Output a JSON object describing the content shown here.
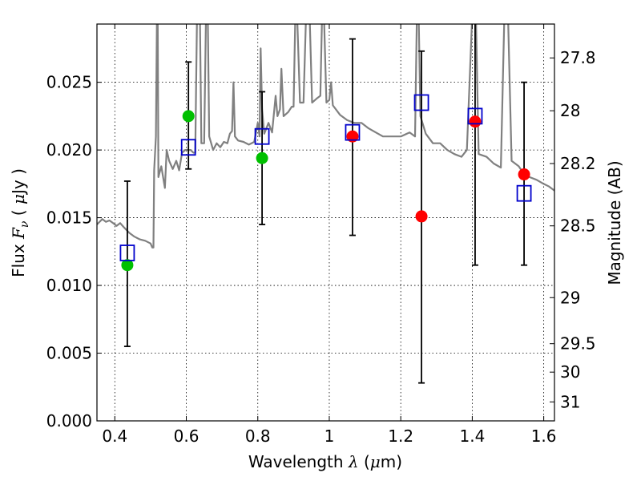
{
  "chart_data": {
    "type": "scatter",
    "xlabel": "Wavelength",
    "xlabel_symbol": "λ",
    "xlabel_unit_open": " (",
    "xlabel_unit_mu": "μ",
    "xlabel_unit_close": "m)",
    "ylabel_left_prefix": "Flux",
    "ylabel_left_symbol": "F",
    "ylabel_left_sub": "ν",
    "ylabel_left_unit_open": "(",
    "ylabel_left_unit_mu": "μ",
    "ylabel_left_unit_close": "Jy )",
    "ylabel_right": "Magnitude (AB)",
    "xlim": [
      0.35,
      1.63
    ],
    "ylim": [
      0.0,
      0.0293
    ],
    "x_ticks": [
      0.4,
      0.6,
      0.8,
      1.0,
      1.2,
      1.4,
      1.6
    ],
    "x_tick_labels": [
      "0.4",
      "0.6",
      "0.8",
      "1",
      "1.2",
      "1.4",
      "1.6"
    ],
    "y_ticks": [
      0.0,
      0.005,
      0.01,
      0.015,
      0.02,
      0.025
    ],
    "y_tick_labels": [
      "0.000",
      "0.005",
      "0.010",
      "0.015",
      "0.020",
      "0.025"
    ],
    "right_ticks": [
      {
        "label": "27.8",
        "flux": 0.0268
      },
      {
        "label": "28",
        "flux": 0.0229
      },
      {
        "label": "28.2",
        "flux": 0.019
      },
      {
        "label": "28.5",
        "flux": 0.0144
      },
      {
        "label": "29",
        "flux": 0.0091
      },
      {
        "label": "29.5",
        "flux": 0.0057
      },
      {
        "label": "30",
        "flux": 0.0036
      },
      {
        "label": "31",
        "flux": 0.0014
      }
    ],
    "grid": true,
    "spectrum_color": "#808080",
    "spectrum": [
      [
        0.35,
        0.0145
      ],
      [
        0.365,
        0.0149
      ],
      [
        0.375,
        0.0147
      ],
      [
        0.385,
        0.0148
      ],
      [
        0.395,
        0.0146
      ],
      [
        0.405,
        0.0144
      ],
      [
        0.415,
        0.0146
      ],
      [
        0.425,
        0.0143
      ],
      [
        0.44,
        0.0139
      ],
      [
        0.455,
        0.0136
      ],
      [
        0.47,
        0.0134
      ],
      [
        0.485,
        0.0133
      ],
      [
        0.5,
        0.0131
      ],
      [
        0.505,
        0.0128
      ],
      [
        0.508,
        0.0128
      ],
      [
        0.51,
        0.0185
      ],
      [
        0.515,
        0.021
      ],
      [
        0.518,
        0.03
      ],
      [
        0.52,
        0.03
      ],
      [
        0.522,
        0.018
      ],
      [
        0.53,
        0.0188
      ],
      [
        0.54,
        0.0172
      ],
      [
        0.545,
        0.02
      ],
      [
        0.552,
        0.0192
      ],
      [
        0.562,
        0.0186
      ],
      [
        0.572,
        0.0192
      ],
      [
        0.58,
        0.0185
      ],
      [
        0.588,
        0.0198
      ],
      [
        0.597,
        0.02
      ],
      [
        0.603,
        0.02
      ],
      [
        0.612,
        0.02
      ],
      [
        0.62,
        0.0198
      ],
      [
        0.625,
        0.0198
      ],
      [
        0.63,
        0.03
      ],
      [
        0.638,
        0.03
      ],
      [
        0.642,
        0.0205
      ],
      [
        0.65,
        0.0205
      ],
      [
        0.655,
        0.03
      ],
      [
        0.66,
        0.03
      ],
      [
        0.664,
        0.021
      ],
      [
        0.675,
        0.02
      ],
      [
        0.685,
        0.0205
      ],
      [
        0.695,
        0.0202
      ],
      [
        0.705,
        0.0206
      ],
      [
        0.715,
        0.0205
      ],
      [
        0.722,
        0.0212
      ],
      [
        0.728,
        0.0214
      ],
      [
        0.732,
        0.025
      ],
      [
        0.736,
        0.021
      ],
      [
        0.745,
        0.0207
      ],
      [
        0.76,
        0.0206
      ],
      [
        0.775,
        0.0204
      ],
      [
        0.79,
        0.0206
      ],
      [
        0.8,
        0.022
      ],
      [
        0.805,
        0.021
      ],
      [
        0.808,
        0.0275
      ],
      [
        0.812,
        0.023
      ],
      [
        0.818,
        0.0212
      ],
      [
        0.83,
        0.022
      ],
      [
        0.84,
        0.0213
      ],
      [
        0.85,
        0.024
      ],
      [
        0.855,
        0.0225
      ],
      [
        0.862,
        0.023
      ],
      [
        0.866,
        0.026
      ],
      [
        0.872,
        0.0225
      ],
      [
        0.885,
        0.0228
      ],
      [
        0.895,
        0.0232
      ],
      [
        0.9,
        0.0232
      ],
      [
        0.905,
        0.03
      ],
      [
        0.91,
        0.03
      ],
      [
        0.918,
        0.0235
      ],
      [
        0.928,
        0.0235
      ],
      [
        0.935,
        0.03
      ],
      [
        0.945,
        0.03
      ],
      [
        0.952,
        0.0235
      ],
      [
        0.965,
        0.0238
      ],
      [
        0.975,
        0.024
      ],
      [
        0.98,
        0.03
      ],
      [
        0.985,
        0.03
      ],
      [
        0.992,
        0.0235
      ],
      [
        1.0,
        0.0237
      ],
      [
        1.005,
        0.025
      ],
      [
        1.01,
        0.0233
      ],
      [
        1.03,
        0.0226
      ],
      [
        1.05,
        0.0222
      ],
      [
        1.07,
        0.022
      ],
      [
        1.09,
        0.022
      ],
      [
        1.11,
        0.0216
      ],
      [
        1.13,
        0.0213
      ],
      [
        1.15,
        0.021
      ],
      [
        1.175,
        0.021
      ],
      [
        1.2,
        0.021
      ],
      [
        1.225,
        0.0213
      ],
      [
        1.24,
        0.021
      ],
      [
        1.245,
        0.03
      ],
      [
        1.25,
        0.03
      ],
      [
        1.255,
        0.0225
      ],
      [
        1.27,
        0.0212
      ],
      [
        1.29,
        0.0205
      ],
      [
        1.31,
        0.0205
      ],
      [
        1.33,
        0.02
      ],
      [
        1.35,
        0.0197
      ],
      [
        1.37,
        0.0195
      ],
      [
        1.385,
        0.02
      ],
      [
        1.4,
        0.03
      ],
      [
        1.41,
        0.03
      ],
      [
        1.418,
        0.0197
      ],
      [
        1.44,
        0.0195
      ],
      [
        1.46,
        0.019
      ],
      [
        1.48,
        0.0187
      ],
      [
        1.49,
        0.03
      ],
      [
        1.5,
        0.03
      ],
      [
        1.51,
        0.0192
      ],
      [
        1.53,
        0.0188
      ],
      [
        1.545,
        0.0182
      ],
      [
        1.56,
        0.018
      ],
      [
        1.58,
        0.0178
      ],
      [
        1.6,
        0.0175
      ],
      [
        1.615,
        0.0173
      ],
      [
        1.63,
        0.017
      ]
    ],
    "series": [
      {
        "name": "model_photometry",
        "marker": "open-square",
        "color": "#0000cc",
        "points": [
          {
            "x": 0.435,
            "y": 0.0124,
            "yerr_low": 0.0055,
            "yerr_high": 0.0177
          },
          {
            "x": 0.606,
            "y": 0.0202,
            "yerr_low": 0.0186,
            "yerr_high": 0.0265
          },
          {
            "x": 0.812,
            "y": 0.021,
            "yerr_low": 0.0145,
            "yerr_high": 0.0243
          },
          {
            "x": 1.065,
            "y": 0.0213,
            "yerr_low": 0.0137,
            "yerr_high": 0.0282
          },
          {
            "x": 1.258,
            "y": 0.0235,
            "yerr_low": 0.0028,
            "yerr_high": 0.0273
          },
          {
            "x": 1.408,
            "y": 0.0225,
            "yerr_low": 0.0115,
            "yerr_high": 0.03
          },
          {
            "x": 1.545,
            "y": 0.0168,
            "yerr_low": 0.0115,
            "yerr_high": 0.025
          }
        ]
      },
      {
        "name": "detections",
        "marker": "filled-circle",
        "color": "#00c000",
        "points": [
          {
            "x": 0.435,
            "y": 0.0115
          },
          {
            "x": 0.606,
            "y": 0.0225
          },
          {
            "x": 0.812,
            "y": 0.0194
          }
        ]
      },
      {
        "name": "nir_detections",
        "marker": "filled-circle",
        "color": "#ff0000",
        "points": [
          {
            "x": 1.065,
            "y": 0.021
          },
          {
            "x": 1.258,
            "y": 0.0151
          },
          {
            "x": 1.408,
            "y": 0.0221
          },
          {
            "x": 1.545,
            "y": 0.0182
          }
        ]
      }
    ]
  }
}
